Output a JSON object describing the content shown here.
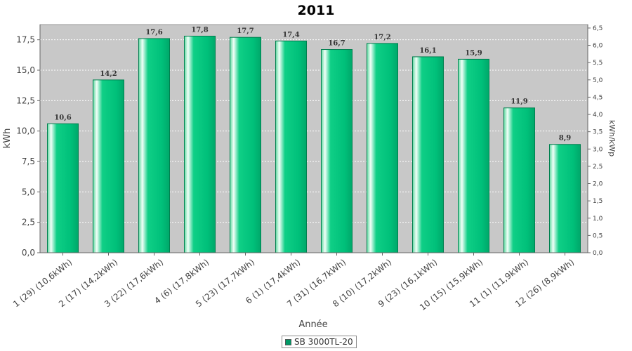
{
  "chart_data": {
    "type": "bar",
    "title": "2011",
    "xlabel": "Année",
    "ylabel": "kWh",
    "ylabel_right": "kWh/kWp",
    "categories": [
      "1 (29)  (10,6kWh)",
      "2 (17)  (14,2kWh)",
      "3 (22)  (17,6kWh)",
      "4 (6)  (17,8kWh)",
      "5 (23)  (17,7kWh)",
      "6 (1)  (17,4kWh)",
      "7 (31)  (16,7kWh)",
      "8 (10)  (17,2kWh)",
      "9 (23)  (16,1kWh)",
      "10 (15)  (15,9kWh)",
      "11 (1)  (11,9kWh)",
      "12 (26)  (8,9kWh)"
    ],
    "series": [
      {
        "name": "SB 3000TL-20",
        "values": [
          10.6,
          14.2,
          17.6,
          17.8,
          17.7,
          17.4,
          16.7,
          17.2,
          16.1,
          15.9,
          11.9,
          8.9
        ],
        "labels": [
          "10,6",
          "14,2",
          "17,6",
          "17,8",
          "17,7",
          "17,4",
          "16,7",
          "17,2",
          "16,1",
          "15,9",
          "11,9",
          "8,9"
        ]
      }
    ],
    "ylim": [
      0,
      18.75
    ],
    "y_ticks": [
      "0,0",
      "2,5",
      "5,0",
      "7,5",
      "10,0",
      "12,5",
      "15,0",
      "17,5"
    ],
    "y2lim": [
      0,
      6.6
    ],
    "y2_ticks": [
      "0,0",
      "0,5",
      "1,0",
      "1,5",
      "2,0",
      "2,5",
      "3,0",
      "3,5",
      "4,0",
      "4,5",
      "5,0",
      "5,5",
      "6,0",
      "6,5"
    ],
    "grid": true,
    "legend": "bottom",
    "colors": {
      "bar_fill": "#00c07a",
      "bar_highlight": "#e8fff4",
      "bar_edge": "#00804f",
      "plot_background": "#c8c8c8",
      "legend_swatch": "#009966"
    }
  }
}
